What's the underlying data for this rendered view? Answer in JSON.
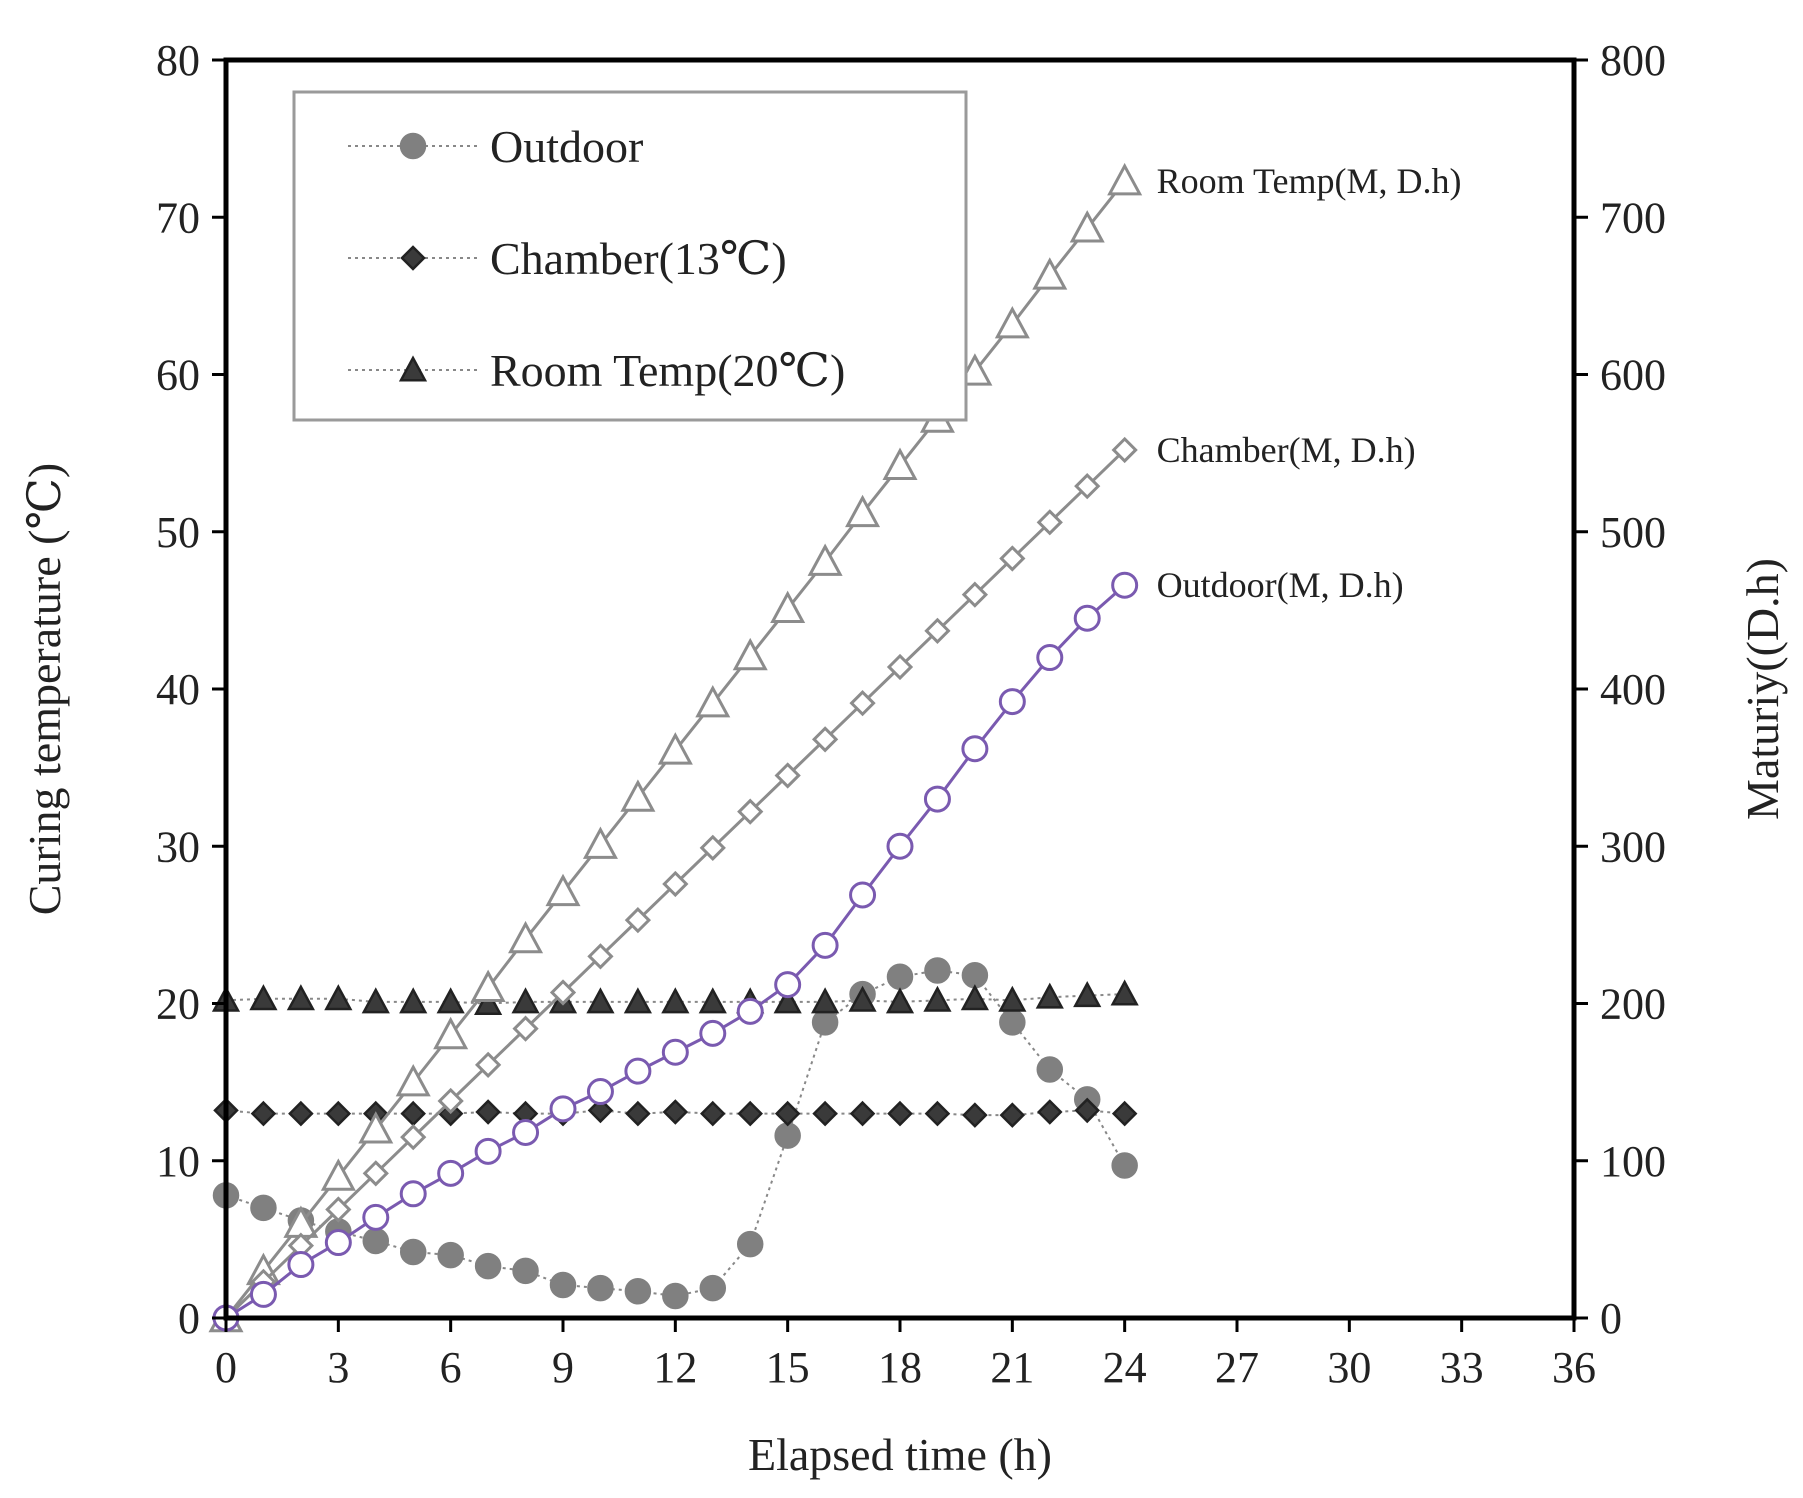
{
  "chart_data": {
    "type": "line",
    "title": "",
    "xlabel": "Elapsed time (h)",
    "ylabel": "Curing temperature (℃)",
    "y2label": "Maturiy((D.h)",
    "xlim": [
      0,
      36
    ],
    "xticks": [
      0,
      3,
      6,
      9,
      12,
      15,
      18,
      21,
      24,
      27,
      30,
      33,
      36
    ],
    "ylim": [
      0,
      80
    ],
    "yticks": [
      0,
      10,
      20,
      30,
      40,
      50,
      60,
      70,
      80
    ],
    "y2lim": [
      0,
      800
    ],
    "y2ticks": [
      0,
      100,
      200,
      300,
      400,
      500,
      600,
      700,
      800
    ],
    "grid": false,
    "legend_position": "top-left",
    "x": [
      0,
      1,
      2,
      3,
      4,
      5,
      6,
      7,
      8,
      9,
      10,
      11,
      12,
      13,
      14,
      15,
      16,
      17,
      18,
      19,
      20,
      21,
      22,
      23,
      24
    ],
    "series": [
      {
        "name": "Outdoor",
        "axis": "left",
        "legend": true,
        "marker": "circle-filled",
        "line": "dotted",
        "color": "#808080",
        "values": [
          7.8,
          7.0,
          6.2,
          5.5,
          4.9,
          4.2,
          4.0,
          3.3,
          3.0,
          2.1,
          1.9,
          1.7,
          1.4,
          1.9,
          4.7,
          11.6,
          18.8,
          20.6,
          21.7,
          22.1,
          21.8,
          18.8,
          15.8,
          13.9,
          9.7
        ]
      },
      {
        "name": "Chamber(13℃)",
        "axis": "left",
        "legend": true,
        "marker": "diamond-filled",
        "line": "dotted",
        "color": "#222222",
        "values": [
          13.2,
          13.0,
          13.0,
          13.0,
          13.0,
          13.0,
          13.0,
          13.1,
          13.0,
          13.0,
          13.2,
          13.0,
          13.1,
          13.0,
          13.0,
          13.0,
          13.0,
          13.0,
          13.0,
          13.0,
          12.9,
          12.9,
          13.1,
          13.2,
          13.0
        ]
      },
      {
        "name": "Room Temp(20℃)",
        "axis": "left",
        "legend": true,
        "marker": "triangle-filled",
        "line": "dotted",
        "color": "#222222",
        "values": [
          20.2,
          20.3,
          20.3,
          20.3,
          20.1,
          20.1,
          20.1,
          20.0,
          20.1,
          20.1,
          20.1,
          20.1,
          20.1,
          20.1,
          20.1,
          20.1,
          20.1,
          20.2,
          20.1,
          20.2,
          20.3,
          20.2,
          20.4,
          20.5,
          20.6
        ]
      },
      {
        "name": "Room Temp(M, D.h)",
        "axis": "right",
        "legend": false,
        "marker": "triangle-open",
        "line": "solid",
        "color": "#8c8c8c",
        "values": [
          0,
          30,
          60,
          90,
          120,
          150,
          180,
          210,
          241,
          271,
          301,
          331,
          361,
          391,
          421,
          451,
          481,
          512,
          542,
          572,
          602,
          632,
          663,
          693,
          723
        ]
      },
      {
        "name": "Chamber(M, D.h)",
        "axis": "right",
        "legend": false,
        "marker": "diamond-open",
        "line": "solid",
        "color": "#8c8c8c",
        "values": [
          0,
          23,
          46,
          69,
          92,
          115,
          138,
          161,
          184,
          207,
          230,
          253,
          276,
          299,
          322,
          345,
          368,
          391,
          414,
          437,
          460,
          483,
          506,
          529,
          552
        ]
      },
      {
        "name": "Outdoor(M, D.h)",
        "axis": "right",
        "legend": false,
        "marker": "circle-open",
        "line": "solid",
        "color": "#7a5ab0",
        "values": [
          0,
          15,
          34,
          48,
          64,
          79,
          92,
          106,
          118,
          133,
          144,
          157,
          169,
          181,
          195,
          212,
          237,
          269,
          300,
          330,
          362,
          392,
          420,
          445,
          466
        ]
      }
    ],
    "annotations": [
      {
        "text": "Room Temp(M, D.h)",
        "x": 24,
        "y2": 723
      },
      {
        "text": "Chamber(M, D.h)",
        "x": 24,
        "y2": 552
      },
      {
        "text": "Outdoor(M, D.h)",
        "x": 24,
        "y2": 466
      }
    ]
  }
}
